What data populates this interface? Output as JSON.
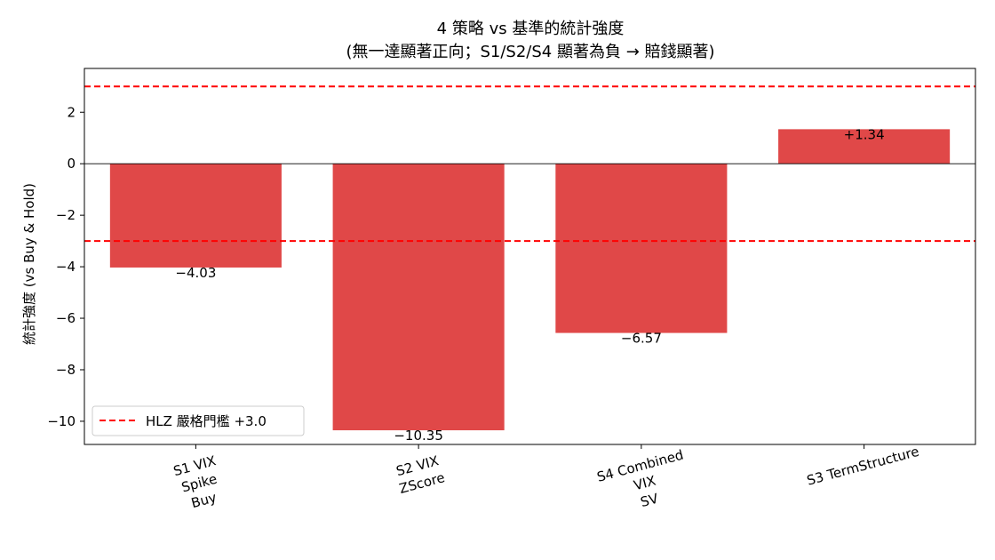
{
  "chart_data": {
    "type": "bar",
    "title": "4 策略 vs 基準的統計強度",
    "subtitle": "(無一達顯著正向；S1/S2/S4 顯著為負 → 賠錢顯著)",
    "ylabel": "統計強度 (vs Buy & Hold)",
    "xlabel": "",
    "categories": [
      [
        "S1 VIX",
        "Spike",
        "Buy"
      ],
      [
        "S2 VIX",
        "ZScore"
      ],
      [
        "S4 Combined",
        "VIX",
        "SV"
      ],
      [
        "S3 TermStructure"
      ]
    ],
    "values": [
      -4.03,
      -10.35,
      -6.57,
      1.34
    ],
    "data_labels": [
      "−4.03",
      "−10.35",
      "−6.57",
      "+1.34"
    ],
    "ylim": [
      -10.9,
      3.7
    ],
    "yticks": [
      2,
      0,
      -2,
      -4,
      -6,
      -8,
      -10
    ],
    "ytick_labels": [
      "2",
      "0",
      "−2",
      "−4",
      "−6",
      "−8",
      "−10"
    ],
    "bar_color": "#e04848",
    "threshold_lines": [
      3.0,
      -3.0
    ],
    "threshold_color": "#ff0000",
    "zero_line": true,
    "grid": false,
    "legend": {
      "placement": "bottom-left",
      "entries": [
        {
          "label": "HLZ 嚴格門檻 +3.0",
          "style": "dashed",
          "color": "#ff0000"
        }
      ]
    }
  }
}
